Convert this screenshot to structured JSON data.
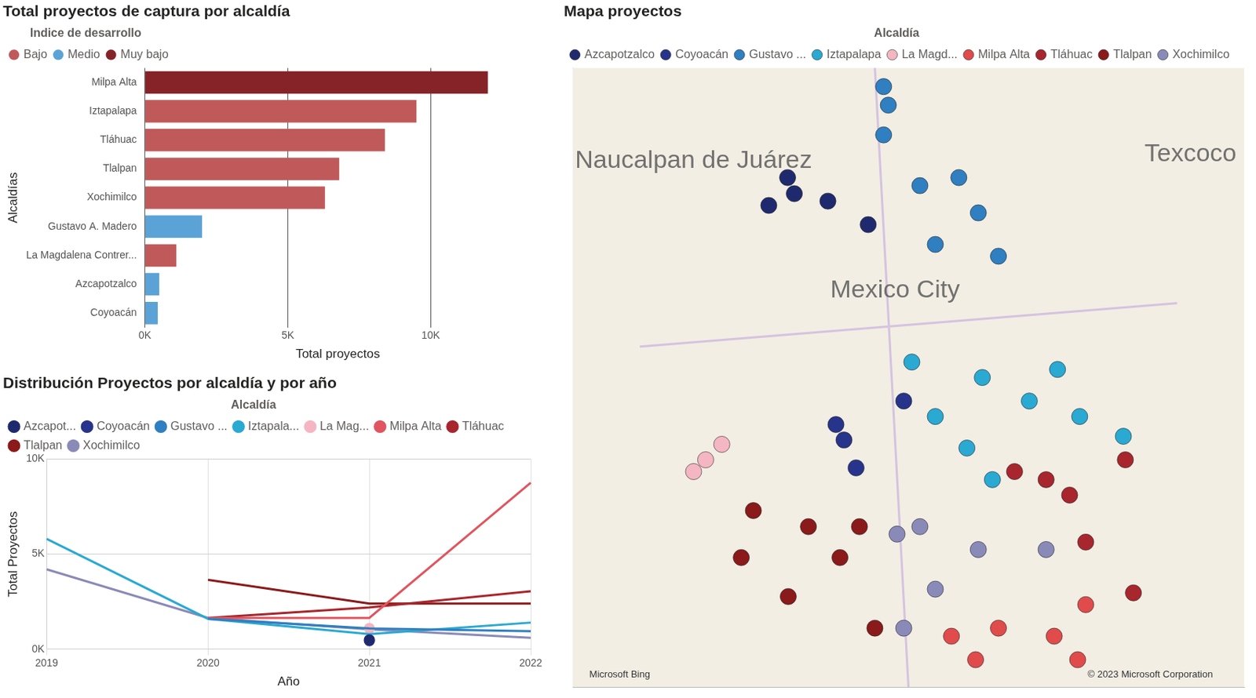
{
  "chart_data": [
    {
      "type": "bar",
      "title": "Total proyectos de captura por alcaldía",
      "orientation": "horizontal",
      "stacked": true,
      "legend": "top-left",
      "legend_title": "Indice de desarrollo",
      "grid": true,
      "x_label": "Total proyectos",
      "y_label": "Alcaldías",
      "categories": [
        "Milpa Alta",
        "Iztapalapa",
        "Tláhuac",
        "Tlalpan",
        "Xochimilco",
        "Gustavo A. Madero",
        "La Magdalena Contrer...",
        "Azcapotzalco",
        "Coyoacán"
      ],
      "series": [
        {
          "name": "Bajo",
          "color": "#c05a5a",
          "values": [
            null,
            9500,
            8400,
            6800,
            6300,
            null,
            1100,
            null,
            null
          ]
        },
        {
          "name": "Medio",
          "color": "#5ba3d6",
          "values": [
            null,
            null,
            null,
            null,
            null,
            2000,
            null,
            500,
            450
          ]
        },
        {
          "name": "Muy bajo",
          "color": "#862328",
          "values": [
            12000,
            null,
            null,
            null,
            null,
            null,
            null,
            null,
            null
          ]
        }
      ],
      "xlim": [
        0,
        13500
      ],
      "xticks": [
        {
          "value": 0,
          "label": "0K"
        },
        {
          "value": 5000,
          "label": "5K"
        },
        {
          "value": 10000,
          "label": "10K"
        }
      ]
    },
    {
      "type": "line",
      "title": "Distribución Proyectos por alcaldía y por año",
      "legend": "top-left",
      "legend_title": "Alcaldía",
      "grid": true,
      "x_label": "Año",
      "y_label": "Total Proyectos",
      "categories": [
        "2019",
        "2020",
        "2021",
        "2022"
      ],
      "series": [
        {
          "name": "Azcapot...",
          "color": "#1f2a6e",
          "values": [
            null,
            null,
            500,
            null
          ]
        },
        {
          "name": "Coyoacán",
          "color": "#27348b",
          "values": [
            null,
            null,
            450,
            null
          ]
        },
        {
          "name": "Gustavo ...",
          "color": "#2f7fc1",
          "values": [
            null,
            1600,
            1100,
            950
          ]
        },
        {
          "name": "Iztapala...",
          "color": "#2aa9d2",
          "values": [
            5800,
            1600,
            800,
            1400
          ]
        },
        {
          "name": "La Mag...",
          "color": "#f4b6c2",
          "values": [
            null,
            null,
            1100,
            null
          ]
        },
        {
          "name": "Milpa Alta",
          "color": "#e0555f",
          "values": [
            null,
            1650,
            1650,
            8750
          ]
        },
        {
          "name": "Tláhuac",
          "color": "#a8262d",
          "values": [
            null,
            1650,
            2200,
            3050
          ]
        },
        {
          "name": "Tlalpan",
          "color": "#8b1a1a",
          "values": [
            null,
            3650,
            2400,
            2400
          ]
        },
        {
          "name": "Xochimilco",
          "color": "#8a8ab8",
          "values": [
            4200,
            1650,
            1050,
            600
          ]
        }
      ],
      "ylim": [
        0,
        10000
      ],
      "yticks": [
        {
          "value": 0,
          "label": "0K"
        },
        {
          "value": 5000,
          "label": "5K"
        },
        {
          "value": 10000,
          "label": "10K"
        }
      ]
    },
    {
      "type": "scatter",
      "title": "Mapa proyectos",
      "legend": "top-left",
      "legend_title": "Alcaldía",
      "grid": false,
      "tick_labels": false,
      "xlim": [
        0,
        100
      ],
      "ylim": [
        0,
        100
      ],
      "annotations": [
        {
          "text": "Naucalpan de Juárez",
          "x": 18,
          "y": 85
        },
        {
          "text": "Mexico City",
          "x": 48,
          "y": 64
        },
        {
          "text": "Texcoco",
          "x": 92,
          "y": 86
        },
        {
          "text": "Microsoft Bing",
          "x": 7,
          "y": 2
        },
        {
          "text": "© 2023 Microsoft Corporation",
          "x": 86,
          "y": 2
        }
      ],
      "series": [
        {
          "name": "Azcapotzalco",
          "color": "#1f2a6e",
          "x": [
            29.2,
            33,
            38,
            32,
            44
          ],
          "y": [
            77.8,
            79.7,
            78.5,
            82.3,
            74.7
          ]
        },
        {
          "name": "Coyoacán",
          "color": "#27348b",
          "x": [
            40.4,
            42.2,
            49.3,
            39.2
          ],
          "y": [
            39.9,
            35.4,
            46.2,
            42.4
          ]
        },
        {
          "name": "Gustavo ...",
          "color": "#2f7fc1",
          "x": [
            46.3,
            46.3,
            51.7,
            57.5,
            60.4,
            54,
            63.4,
            47
          ],
          "y": [
            97,
            89.2,
            81,
            82.3,
            76.6,
            71.5,
            69.6,
            94
          ]
        },
        {
          "name": "Iztapalapa",
          "color": "#2aa9d2",
          "x": [
            50.5,
            61,
            68,
            75.5,
            58.7,
            62.5,
            54,
            82,
            72.2
          ],
          "y": [
            52.5,
            50,
            46.2,
            43.7,
            38.6,
            33.5,
            43.7,
            40.5,
            51.3
          ]
        },
        {
          "name": "La Magd...",
          "color": "#f4b6c2",
          "x": [
            19.8,
            22.2,
            18
          ],
          "y": [
            36.7,
            39.2,
            34.8
          ]
        },
        {
          "name": "Milpa Alta",
          "color": "#e04b4b",
          "x": [
            56.4,
            63.4,
            71.7,
            75.2,
            76.4,
            60
          ],
          "y": [
            8.2,
            9.5,
            8.2,
            4.4,
            13.3,
            4.4
          ]
        },
        {
          "name": "Tláhuac",
          "color": "#a8262d",
          "x": [
            65.8,
            74,
            76.4,
            82.3,
            83.5,
            70.5
          ],
          "y": [
            34.8,
            31,
            23.4,
            36.7,
            15.2,
            33.5
          ]
        },
        {
          "name": "Tlalpan",
          "color": "#8b1a1a",
          "x": [
            26.9,
            35.1,
            39.8,
            32.1,
            42.7,
            45,
            25.1
          ],
          "y": [
            28.5,
            25.9,
            20.9,
            14.6,
            25.9,
            9.5,
            20.9
          ]
        },
        {
          "name": "Xochimilco",
          "color": "#8a8ab8",
          "x": [
            51.7,
            54,
            70.5,
            60.4,
            49.3,
            48.3
          ],
          "y": [
            25.9,
            15.8,
            22.2,
            22.2,
            9.5,
            24.7
          ]
        }
      ]
    }
  ]
}
